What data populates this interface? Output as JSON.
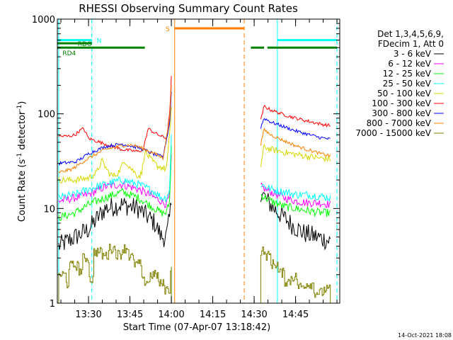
{
  "chart_data": {
    "type": "line",
    "title": "RHESSI Observing Summary Count Rates",
    "xlabel": "Start Time (07-Apr-07 13:18:42)",
    "ylabel": "Count Rate (s",
    "ylabel_exp": "-1",
    "ylabel_mid": " detector",
    "ylabel_end": ")",
    "yscale": "log",
    "ylim": [
      1,
      1000
    ],
    "xlim_min": [
      13.3117,
      15.0167
    ],
    "y_ticks": [
      {
        "value": 1,
        "label": "1"
      },
      {
        "value": 10,
        "label": "10"
      },
      {
        "value": 100,
        "label": "100"
      },
      {
        "value": 1000,
        "label": "1000"
      }
    ],
    "x_ticks": [
      {
        "value": 13.5,
        "label": "13:30"
      },
      {
        "value": 13.75,
        "label": "13:45"
      },
      {
        "value": 14.0,
        "label": "14:00"
      },
      {
        "value": 14.25,
        "label": "14:15"
      },
      {
        "value": 14.5,
        "label": "14:30"
      },
      {
        "value": 14.75,
        "label": "14:45"
      }
    ],
    "legend": {
      "placement": "right",
      "header": [
        "Det 1,3,4,5,6,9,",
        "FDecim 1, Att 0"
      ],
      "entries": [
        {
          "label": "3 - 6 keV",
          "color": "#000000"
        },
        {
          "label": "6 - 12 keV",
          "color": "#ff00ff"
        },
        {
          "label": "12 - 25 keV",
          "color": "#00ff00"
        },
        {
          "label": "25 - 50 keV",
          "color": "#00ffff"
        },
        {
          "label": "50 - 100 keV",
          "color": "#d7d700"
        },
        {
          "label": "100 - 300 keV",
          "color": "#ff0000"
        },
        {
          "label": "300 - 800 keV",
          "color": "#0000ff"
        },
        {
          "label": "800 - 7000 keV",
          "color": "#ff8000"
        },
        {
          "label": "7000 - 15000 keV",
          "color": "#808000"
        }
      ]
    },
    "series": [
      {
        "name": "3 - 6 keV",
        "color": "#000000",
        "noise": 0.25,
        "segments": [
          {
            "x": [
              13.32,
              13.42,
              13.5,
              13.6,
              13.7,
              13.8,
              13.9,
              13.94,
              13.97,
              13.99,
              14.0
            ],
            "y": [
              4,
              5,
              6,
              10,
              11,
              10,
              7,
              5,
              5,
              8,
              12
            ]
          },
          {
            "x": [
              14.54,
              14.58,
              14.62,
              14.68,
              14.74,
              14.8,
              14.88,
              14.96
            ],
            "y": [
              15,
              12,
              10,
              8,
              6.5,
              5.5,
              5,
              4.5
            ]
          }
        ]
      },
      {
        "name": "6 - 12 keV",
        "color": "#ff00ff",
        "noise": 0.1,
        "segments": [
          {
            "x": [
              13.32,
              13.42,
              13.5,
              13.6,
              13.7,
              13.8,
              13.9,
              13.94,
              13.97,
              13.99,
              14.0
            ],
            "y": [
              12,
              13,
              14,
              17,
              18,
              16,
              13,
              12,
              11,
              14,
              35
            ]
          },
          {
            "x": [
              14.54,
              14.6,
              14.68,
              14.75,
              14.82,
              14.9,
              14.96
            ],
            "y": [
              17,
              15,
              13,
              12,
              11.5,
              11.5,
              11
            ]
          }
        ]
      },
      {
        "name": "12 - 25 keV",
        "color": "#00ff00",
        "noise": 0.1,
        "segments": [
          {
            "x": [
              13.32,
              13.42,
              13.5,
              13.6,
              13.7,
              13.8,
              13.9,
              13.94,
              13.97,
              13.99,
              14.0
            ],
            "y": [
              8,
              9,
              11,
              13,
              15,
              13,
              10,
              9,
              9,
              12,
              45
            ]
          },
          {
            "x": [
              14.54,
              14.6,
              14.68,
              14.75,
              14.82,
              14.9,
              14.96
            ],
            "y": [
              14,
              12,
              10.5,
              10,
              9.5,
              9,
              9
            ]
          }
        ]
      },
      {
        "name": "25 - 50 keV",
        "color": "#00ffff",
        "noise": 0.1,
        "segments": [
          {
            "x": [
              13.32,
              13.42,
              13.5,
              13.6,
              13.7,
              13.8,
              13.9,
              13.94,
              13.97,
              13.99,
              14.0
            ],
            "y": [
              13,
              14,
              16,
              18,
              20,
              18,
              15,
              13,
              13,
              16,
              60
            ]
          },
          {
            "x": [
              14.54,
              14.6,
              14.68,
              14.75,
              14.82,
              14.9,
              14.96
            ],
            "y": [
              18,
              16,
              15,
              14,
              14,
              13.5,
              13
            ]
          }
        ]
      },
      {
        "name": "50 - 100 keV",
        "color": "#d7d700",
        "noise": 0.08,
        "segments": [
          {
            "x": [
              13.32,
              13.42,
              13.5,
              13.55,
              13.58,
              13.62,
              13.65,
              13.68,
              13.72,
              13.76,
              13.8,
              13.82,
              13.84,
              13.88,
              13.92,
              13.97,
              13.99,
              14.0
            ],
            "y": [
              20,
              20,
              21,
              24,
              32,
              24,
              22,
              24,
              32,
              26,
              22,
              23,
              40,
              32,
              28,
              26,
              60,
              120
            ]
          },
          {
            "x": [
              14.54,
              14.56,
              14.6,
              14.66,
              14.72,
              14.8,
              14.9,
              14.96
            ],
            "y": [
              28,
              45,
              42,
              40,
              38,
              36,
              34,
              33
            ]
          }
        ]
      },
      {
        "name": "100 - 300 keV",
        "color": "#ff0000",
        "noise": 0.04,
        "segments": [
          {
            "x": [
              13.32,
              13.38,
              13.42,
              13.44,
              13.47,
              13.5,
              13.6,
              13.7,
              13.8,
              13.83,
              13.86,
              13.88,
              13.92,
              13.97,
              13.99,
              14.0
            ],
            "y": [
              58,
              58,
              60,
              65,
              70,
              55,
              48,
              42,
              40,
              42,
              70,
              66,
              60,
              55,
              100,
              250
            ]
          },
          {
            "x": [
              14.54,
              14.56,
              14.6,
              14.68,
              14.75,
              14.82,
              14.9,
              14.96
            ],
            "y": [
              85,
              120,
              110,
              98,
              90,
              84,
              78,
              75
            ]
          }
        ]
      },
      {
        "name": "300 - 800 keV",
        "color": "#0000ff",
        "noise": 0.04,
        "segments": [
          {
            "x": [
              13.32,
              13.42,
              13.46,
              13.5,
              13.6,
              13.7,
              13.8,
              13.86,
              13.9,
              13.95,
              13.99,
              14.0
            ],
            "y": [
              30,
              31,
              34,
              38,
              45,
              48,
              44,
              40,
              37,
              35,
              80,
              170
            ]
          },
          {
            "x": [
              14.54,
              14.56,
              14.6,
              14.68,
              14.75,
              14.82,
              14.9,
              14.96
            ],
            "y": [
              72,
              90,
              82,
              73,
              66,
              61,
              56,
              54
            ]
          }
        ]
      },
      {
        "name": "800 - 7000 keV",
        "color": "#ff8000",
        "noise": 0.04,
        "segments": [
          {
            "x": [
              13.32,
              13.4,
              13.5,
              13.6,
              13.7,
              13.75,
              13.8,
              13.9,
              13.95,
              13.99,
              14.0
            ],
            "y": [
              24,
              26,
              34,
              42,
              46,
              47,
              45,
              38,
              34,
              90,
              210
            ]
          },
          {
            "x": [
              14.54,
              14.56,
              14.6,
              14.68,
              14.75,
              14.82,
              14.9,
              14.96
            ],
            "y": [
              48,
              68,
              60,
              52,
              46,
              42,
              38,
              36
            ]
          }
        ]
      },
      {
        "name": "7000 - 15000 keV",
        "color": "#808000",
        "noise": 0,
        "step": true,
        "segments": [
          {
            "x": [
              13.32,
              13.36,
              13.38,
              13.44,
              13.46,
              13.5,
              13.53,
              13.58,
              13.62,
              13.66,
              13.7,
              13.74,
              13.77,
              13.82,
              13.87,
              13.92,
              13.96,
              13.99,
              14.0
            ],
            "y": [
              2,
              1.6,
              2.5,
              2.2,
              3,
              1.8,
              3.5,
              3.2,
              3.8,
              3.3,
              3.8,
              3.1,
              2.6,
              1.7,
              2,
              1.6,
              1.4,
              2.3,
              4
            ]
          },
          {
            "x": [
              14.54,
              14.56,
              14.6,
              14.64,
              14.68,
              14.72,
              14.76,
              14.8,
              14.86,
              14.92,
              14.96
            ],
            "y": [
              3.6,
              3.2,
              2.6,
              2.1,
              1.7,
              1.9,
              1.5,
              1.6,
              1.3,
              1.4,
              1.2
            ]
          }
        ]
      }
    ],
    "flags": [
      {
        "label": "N",
        "color": "#00ffff",
        "y": 600,
        "segments": [
          [
            13.3117,
            13.52
          ],
          [
            14.64,
            15.0
          ]
        ]
      },
      {
        "label": "RDO",
        "color": "#008000",
        "y": 555,
        "segments": [
          [
            13.3117,
            13.52
          ]
        ]
      },
      {
        "label": "RD4",
        "color": "#008000",
        "y": 500,
        "segments": [
          [
            13.3117,
            13.84
          ],
          [
            14.48,
            14.56
          ],
          [
            14.58,
            15.0
          ]
        ]
      },
      {
        "label": "S",
        "color": "#ff8000",
        "y": 800,
        "segments": [
          [
            14.02,
            14.44
          ]
        ]
      }
    ],
    "vertical_lines": [
      {
        "x": 13.32,
        "color": "#00ffff",
        "dashed": false
      },
      {
        "x": 13.52,
        "color": "#00ffff",
        "dashed": true
      },
      {
        "x": 14.02,
        "color": "#ff8000",
        "dashed": false
      },
      {
        "x": 14.44,
        "color": "#ff8000",
        "dashed": true
      },
      {
        "x": 14.64,
        "color": "#00ffff",
        "dashed": false
      },
      {
        "x": 15.0,
        "color": "#00ffff",
        "dashed": true
      }
    ]
  },
  "footer": {
    "generated": "14-Oct-2021 18:08"
  }
}
